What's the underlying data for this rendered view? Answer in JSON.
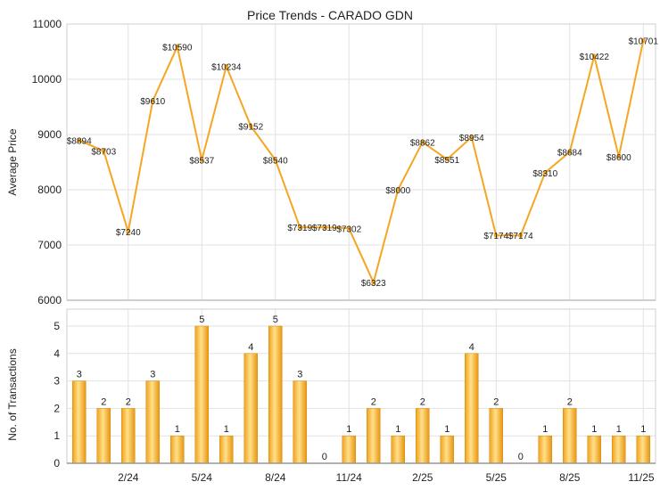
{
  "chart_data": [
    {
      "type": "line",
      "title": "Price Trends - CARADO GDN",
      "ylabel": "Average Price",
      "ylim": [
        6000,
        11000
      ],
      "yticks": [
        6000,
        7000,
        8000,
        9000,
        10000,
        11000
      ],
      "grid": true,
      "line_color": "#f5a623",
      "values": [
        8894,
        8703,
        7240,
        9610,
        10590,
        8537,
        10234,
        9152,
        8540,
        7319,
        7319,
        7302,
        6323,
        8000,
        8862,
        8551,
        8954,
        7174,
        7174,
        8310,
        8684,
        10422,
        8600,
        10701
      ],
      "labels": [
        "$8894",
        "$8703",
        "$7240",
        "$9610",
        "$10590",
        "$8537",
        "$10234",
        "$9152",
        "$8540",
        "$7319",
        "$7319",
        "$7302",
        "$6323",
        "$8000",
        "$8862",
        "$8551",
        "$8954",
        "$7174",
        "$7174",
        "$8310",
        "$8684",
        "$10422",
        "$8600",
        "$10701"
      ]
    },
    {
      "type": "bar",
      "ylabel": "No. of Transactions",
      "ylim": [
        0,
        5
      ],
      "yticks": [
        0,
        1,
        2,
        3,
        4,
        5
      ],
      "grid": true,
      "bar_color": "#f5a623",
      "values": [
        3,
        2,
        2,
        3,
        1,
        5,
        1,
        4,
        5,
        3,
        0,
        1,
        2,
        1,
        2,
        1,
        4,
        2,
        0,
        1,
        2,
        1,
        1,
        1
      ],
      "labels": [
        "3",
        "2",
        "2",
        "3",
        "1",
        "5",
        "1",
        "4",
        "5",
        "3",
        "0",
        "1",
        "2",
        "1",
        "2",
        "1",
        "4",
        "2",
        "0",
        "1",
        "2",
        "1",
        "1",
        "1"
      ],
      "xtick_labels": [
        "2/24",
        "5/24",
        "8/24",
        "11/24",
        "2/25",
        "5/25",
        "8/25",
        "11/25"
      ],
      "xtick_indices": [
        2,
        5,
        8,
        11,
        14,
        17,
        20,
        23
      ]
    }
  ]
}
